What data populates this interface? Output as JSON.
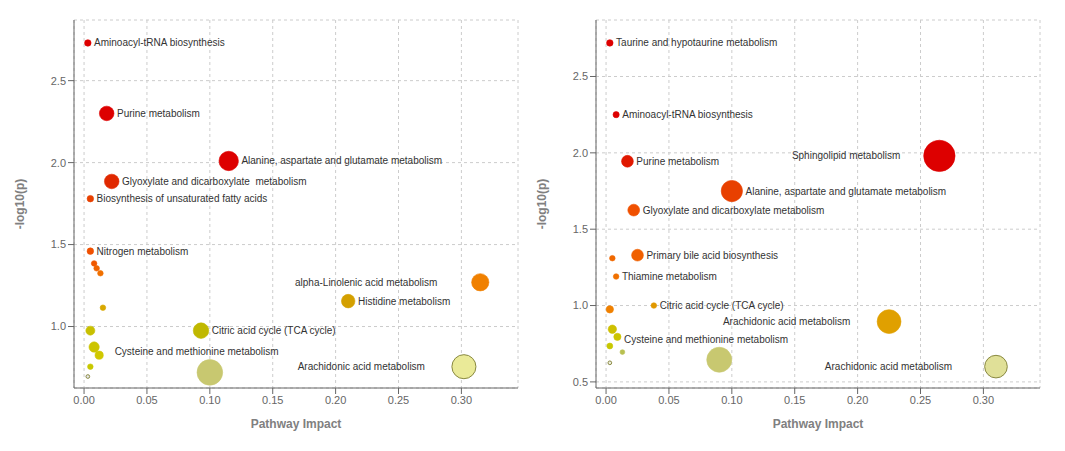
{
  "chart_data": [
    {
      "type": "scatter",
      "xlabel": "Pathway Impact",
      "ylabel": "-log10(p)",
      "x": [
        0.003,
        0.018,
        0.115,
        0.022,
        0.005,
        0.005,
        0.008,
        0.01,
        0.013,
        0.315,
        0.21,
        0.015,
        0.093,
        0.005,
        0.008,
        0.012,
        0.005,
        0.302,
        0.1,
        0.003
      ],
      "values": [
        2.73,
        2.3,
        2.01,
        1.885,
        1.78,
        1.46,
        1.385,
        1.355,
        1.325,
        1.27,
        1.155,
        1.115,
        0.975,
        0.975,
        0.875,
        0.825,
        0.755,
        0.755,
        0.72,
        0.695
      ],
      "sizes": [
        22,
        110,
        195,
        110,
        22,
        22,
        16,
        16,
        16,
        155,
        95,
        16,
        125,
        42,
        55,
        35,
        16,
        300,
        340,
        7
      ],
      "colors": [
        "#dd0000",
        "#dd0000",
        "#dd0000",
        "#e02800",
        "#e84000",
        "#f05000",
        "#f05800",
        "#f06400",
        "#f07000",
        "#f08000",
        "#d4a000",
        "#d8a800",
        "#c0b800",
        "#c8c000",
        "#ccc400",
        "#d0c800",
        "#c8c800",
        "#eaea98",
        "#c8c870",
        "#e8e8e8"
      ],
      "labels": [
        "Aminoacyl-tRNA biosynthesis",
        "Purine metabolism",
        "Alanine, aspartate and glutamate metabolism",
        "Glyoxylate and dicarboxylate  metabolism",
        "Biosynthesis of unsaturated fatty acids",
        "Nitrogen metabolism",
        null,
        null,
        null,
        "alpha-Linolenic acid metabolism",
        "Histidine metabolism",
        null,
        "Citric acid cycle (TCA cycle)",
        null,
        null,
        null,
        null,
        "Arachidonic acid metabolism",
        "Cysteine and methionine metabolism",
        null
      ],
      "xlim": [
        -0.008,
        0.345
      ],
      "ylim": [
        0.625,
        2.87
      ],
      "xticks": [
        {
          "value": 0,
          "label": "0.00"
        },
        0.05,
        {
          "value": 0.1,
          "label": "0.10"
        },
        0.15,
        {
          "value": 0.2,
          "label": "0.20"
        },
        0.25,
        {
          "value": 0.3,
          "label": "0.30"
        }
      ],
      "yticks": [
        {
          "value": 1,
          "label": "1.0"
        },
        1.5,
        {
          "value": 2,
          "label": "2.0"
        },
        2.5
      ],
      "grid": true
    },
    {
      "type": "scatter",
      "xlabel": "Pathway Impact",
      "ylabel": "-log10(p)",
      "x": [
        0.003,
        0.008,
        0.265,
        0.017,
        0.1,
        0.022,
        0.025,
        0.005,
        0.008,
        0.003,
        0.038,
        0.225,
        0.005,
        0.009,
        0.003,
        0.013,
        0.09,
        0.31,
        0.003
      ],
      "values": [
        2.72,
        2.25,
        1.98,
        1.945,
        1.75,
        1.625,
        1.33,
        1.31,
        1.19,
        0.975,
        1.0,
        0.895,
        0.845,
        0.795,
        0.735,
        0.695,
        0.645,
        0.6,
        0.625
      ],
      "sizes": [
        22,
        20,
        510,
        72,
        235,
        72,
        72,
        16,
        16,
        28,
        16,
        295,
        36,
        27,
        18,
        12,
        325,
        265,
        7
      ],
      "colors": [
        "#dd0000",
        "#dd0000",
        "#dd0000",
        "#e01800",
        "#e84000",
        "#f05000",
        "#f06000",
        "#f06800",
        "#f07000",
        "#f08000",
        "#e09800",
        "#e0a000",
        "#cec000",
        "#ccc400",
        "#c8c800",
        "#b8c050",
        "#c8c870",
        "#e0e098",
        "#f0f0e0"
      ],
      "labels": [
        "Taurine and hypotaurine metabolism",
        "Aminoacyl-tRNA biosynthesis",
        "Sphingolipid metabolism",
        "Purine metabolism",
        "Alanine, aspartate and glutamate metabolism",
        "Glyoxylate and dicarboxylate metabolism",
        "Primary bile acid biosynthesis",
        null,
        "Thiamine metabolism",
        null,
        "Citric acid cycle (TCA cycle)",
        "Arachidonic acid metabolism",
        null,
        null,
        null,
        null,
        "Cysteine and methionine metabolism",
        "Arachidonic acid metabolism ",
        null
      ],
      "xlim": [
        -0.008,
        0.345
      ],
      "ylim": [
        0.46,
        2.87
      ],
      "xticks": [
        {
          "value": 0,
          "label": "0.00"
        },
        0.05,
        {
          "value": 0.1,
          "label": "0.10"
        },
        0.15,
        {
          "value": 0.2,
          "label": "0.20"
        },
        0.25,
        {
          "value": 0.3,
          "label": "0.30"
        }
      ],
      "yticks": [
        {
          "value": 0.5,
          "label": "0.5"
        },
        {
          "value": 1,
          "label": "1.0"
        },
        1.5,
        {
          "value": 2,
          "label": "2.0"
        },
        2.5
      ],
      "grid": true
    }
  ]
}
